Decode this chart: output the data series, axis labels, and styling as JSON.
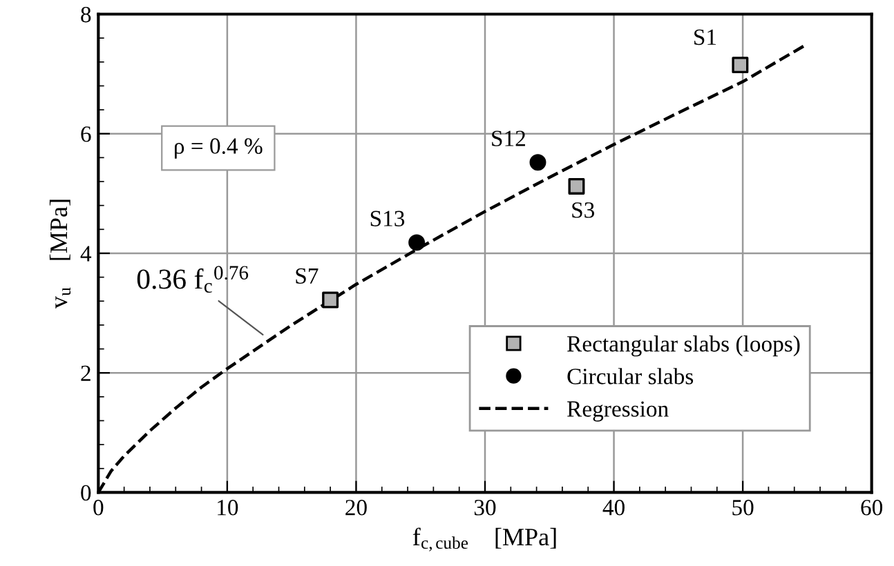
{
  "chart_data": {
    "type": "scatter",
    "xlabel": "f$_{c,cube}$    [MPa]",
    "ylabel": "v$_{u}$    [MPa]",
    "xlim": [
      0,
      60
    ],
    "ylim": [
      0,
      8
    ],
    "xticks": [
      0,
      10,
      20,
      30,
      40,
      50,
      60
    ],
    "yticks": [
      0,
      2,
      4,
      6,
      8
    ],
    "grid": true,
    "legend": "bottom right",
    "series": [
      {
        "name": "Rectangular slabs (loops)",
        "marker": "square",
        "color": "#b3b3b3",
        "x": [
          49.8,
          37.1,
          18.0
        ],
        "values": [
          7.15,
          5.12,
          3.22
        ]
      },
      {
        "name": "Circular slabs",
        "marker": "circle",
        "color": "#000000",
        "x": [
          34.1,
          24.7
        ],
        "values": [
          5.52,
          4.18
        ]
      },
      {
        "name": "Regression",
        "type": "line",
        "marker": "none",
        "line_style": "dashed",
        "color": "#000000",
        "x": [
          0,
          1,
          2,
          4,
          6,
          8,
          10,
          15,
          20,
          25,
          30,
          35,
          40,
          45,
          50,
          55
        ],
        "values": [
          0,
          0.36,
          0.61,
          1.03,
          1.41,
          1.76,
          2.07,
          2.8,
          3.48,
          4.1,
          4.7,
          5.27,
          5.82,
          6.35,
          6.87,
          7.5
        ]
      }
    ],
    "annotations": [
      {
        "text": "S1",
        "x": 49.8,
        "y": 7.15
      },
      {
        "text": "S3",
        "x": 37.1,
        "y": 5.12
      },
      {
        "text": "S12",
        "x": 34.1,
        "y": 5.52
      },
      {
        "text": "S13",
        "x": 24.7,
        "y": 4.18
      },
      {
        "text": "S7",
        "x": 18.0,
        "y": 3.22
      },
      {
        "text": "0.36 f$_{c}$$^{0.76}$",
        "x": 13,
        "y": 2.6
      },
      "ρ = 0.4 %"
    ]
  }
}
